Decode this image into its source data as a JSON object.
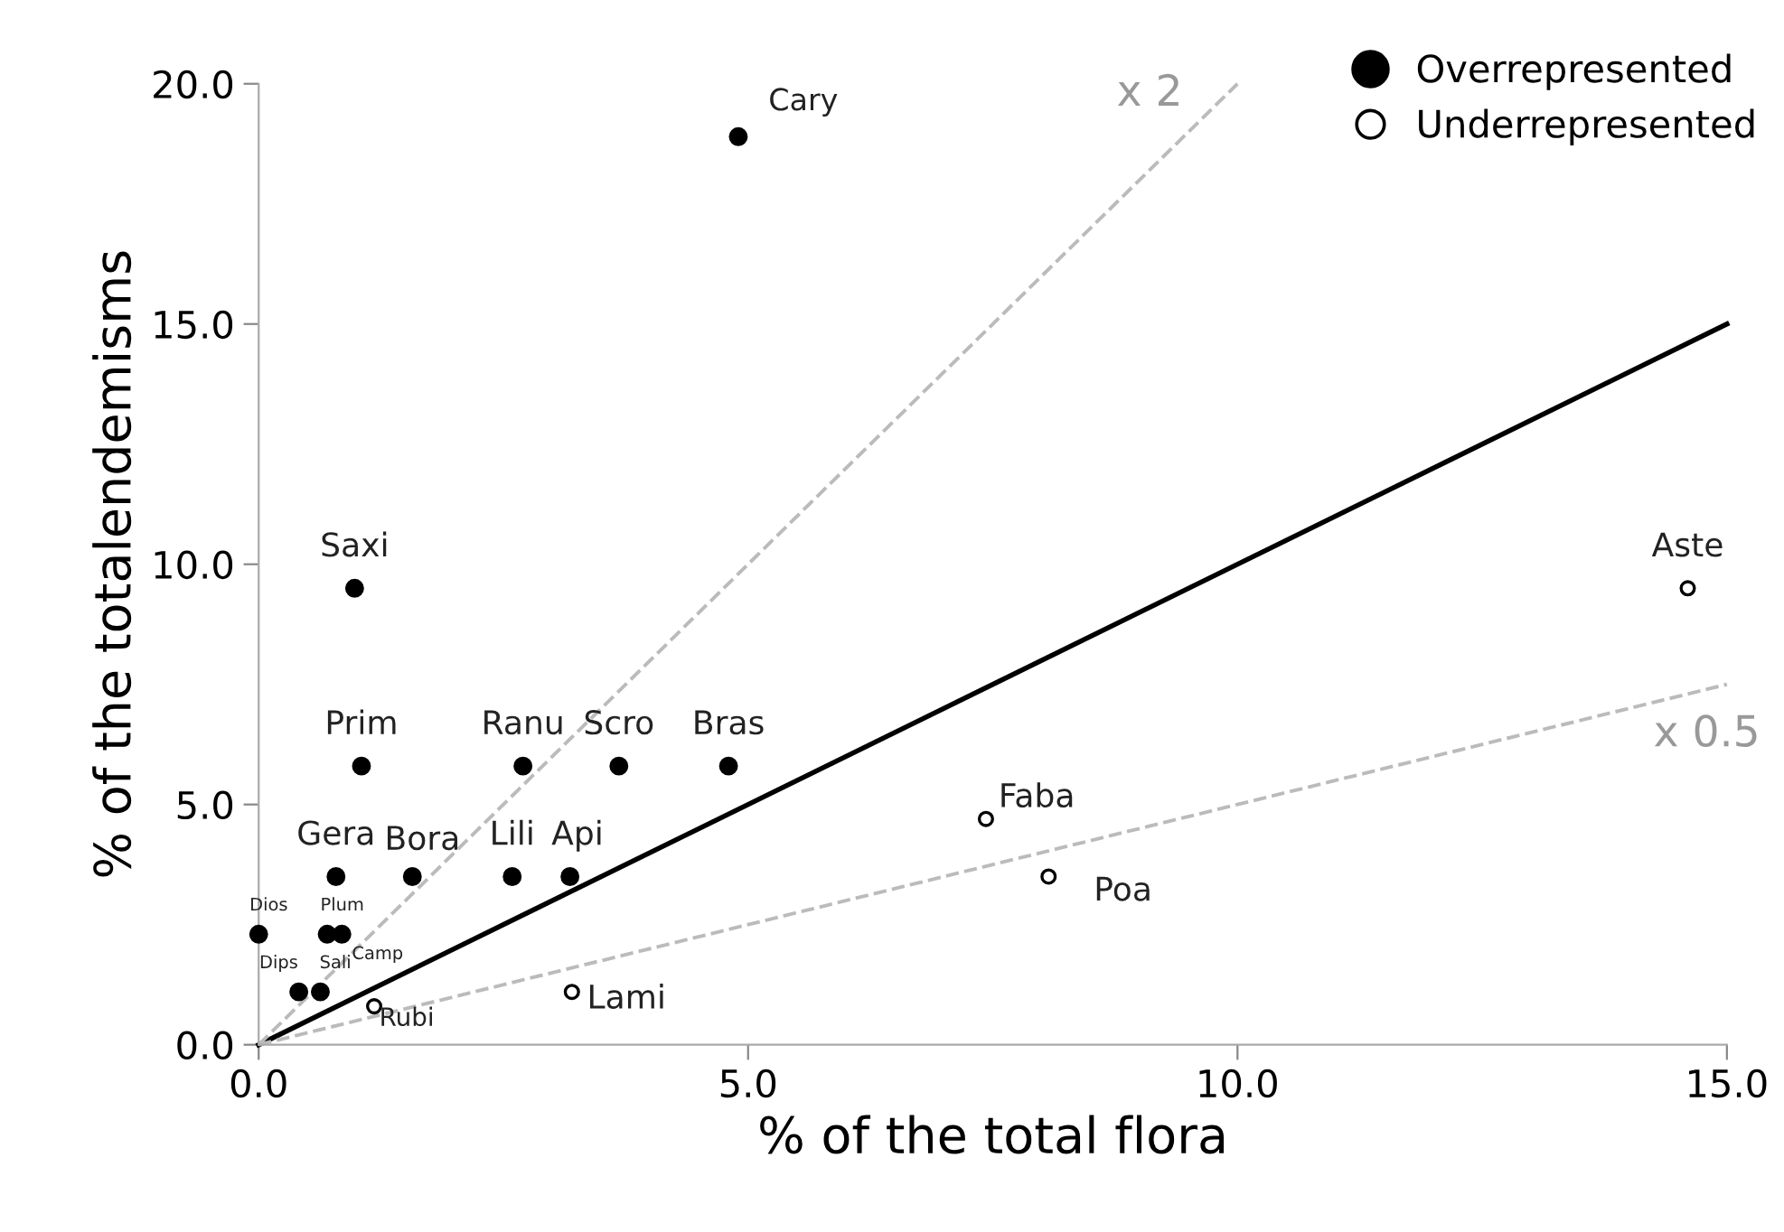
{
  "chart_data": {
    "type": "scatter",
    "xlabel": "% of the total flora",
    "ylabel": "% of the totalendemisms",
    "xlim": [
      0,
      15
    ],
    "ylim": [
      0,
      20
    ],
    "xticks": [
      {
        "value": 0,
        "label": "0.0"
      },
      {
        "value": 5,
        "label": "5.0"
      },
      {
        "value": 10,
        "label": "10.0"
      },
      {
        "value": 15,
        "label": "15.0"
      }
    ],
    "yticks": [
      {
        "value": 0,
        "label": "0.0"
      },
      {
        "value": 5,
        "label": "5.0"
      },
      {
        "value": 10,
        "label": "10.0"
      },
      {
        "value": 15,
        "label": "15.0"
      },
      {
        "value": 20,
        "label": "20.0"
      }
    ],
    "grid": false,
    "legend": "top right",
    "series": [
      {
        "name": "Overrepresented",
        "color": "#000000",
        "marker": "circle",
        "x": [
          4.9,
          0.98,
          1.05,
          2.7,
          3.68,
          4.8,
          0.79,
          1.57,
          2.59,
          3.18,
          0.0,
          0.7,
          0.85,
          0.41,
          0.63
        ],
        "values": [
          18.9,
          9.5,
          5.8,
          5.8,
          5.8,
          5.8,
          3.5,
          3.5,
          3.5,
          3.5,
          2.3,
          2.3,
          2.3,
          1.1,
          1.1
        ]
      },
      {
        "name": "Underrepresented",
        "color": "#000000",
        "marker": "circle",
        "x": [
          1.18,
          3.2,
          7.43,
          8.07,
          14.6
        ],
        "values": [
          0.8,
          1.1,
          4.7,
          3.5,
          9.5
        ]
      },
      {
        "type": "line",
        "color": "#000000",
        "line_style": "solid",
        "marker": "none",
        "x": [
          0,
          15
        ],
        "values": [
          0,
          15
        ]
      },
      {
        "type": "line",
        "color": "#bbbbbb",
        "line_style": "dashed",
        "marker": "none",
        "x": [
          0,
          10
        ],
        "values": [
          0,
          20
        ]
      },
      {
        "type": "line",
        "color": "#bbbbbb",
        "line_style": "dashed",
        "marker": "none",
        "x": [
          0,
          15
        ],
        "values": [
          0,
          7.5
        ]
      }
    ],
    "annotations": [
      {
        "text": "Cary",
        "x": 4.9,
        "y": 18.9
      },
      {
        "text": "Saxi",
        "x": 0.98,
        "y": 9.5
      },
      {
        "text": "Prim",
        "x": 1.05,
        "y": 5.8
      },
      {
        "text": "Ranu",
        "x": 2.7,
        "y": 5.8
      },
      {
        "text": "Scro",
        "x": 3.68,
        "y": 5.8
      },
      {
        "text": "Bras",
        "x": 4.8,
        "y": 5.8
      },
      {
        "text": "Gera",
        "x": 0.79,
        "y": 3.5
      },
      {
        "text": "Bora",
        "x": 1.57,
        "y": 3.5
      },
      {
        "text": "Lili",
        "x": 2.59,
        "y": 3.5
      },
      {
        "text": "Api",
        "x": 3.18,
        "y": 3.5
      },
      {
        "text": "Dios",
        "x": 0.0,
        "y": 2.3
      },
      {
        "text": "Plum",
        "x": 0.7,
        "y": 2.3
      },
      {
        "text": "Camp",
        "x": 0.85,
        "y": 2.3
      },
      {
        "text": "Dips",
        "x": 0.41,
        "y": 1.1
      },
      {
        "text": "Sali",
        "x": 0.63,
        "y": 1.1
      },
      {
        "text": "Rubi",
        "x": 1.18,
        "y": 0.8
      },
      {
        "text": "Lami",
        "x": 3.2,
        "y": 1.1
      },
      {
        "text": "Faba",
        "x": 7.43,
        "y": 4.7
      },
      {
        "text": "Poa",
        "x": 8.07,
        "y": 3.5
      },
      {
        "text": "Aste",
        "x": 14.6,
        "y": 9.5
      },
      {
        "text": "x 2",
        "x": 10,
        "y": 20
      },
      {
        "text": "x 0.5",
        "x": 15,
        "y": 7.5
      }
    ]
  }
}
